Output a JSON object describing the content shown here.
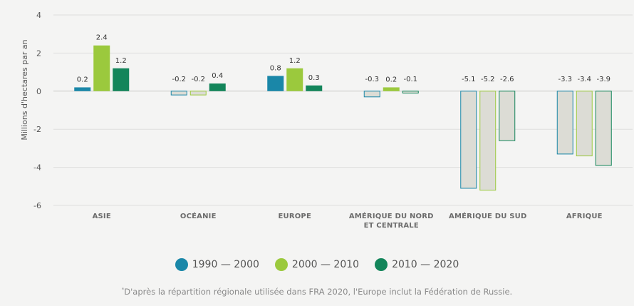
{
  "chart_data": {
    "type": "bar",
    "ylabel": "Millions d'hectares par an",
    "ylim": [
      -6,
      4
    ],
    "yticks": [
      4,
      2,
      0,
      -2,
      -4,
      -6
    ],
    "categories": [
      [
        "ASIE"
      ],
      [
        "OCÉANIE"
      ],
      [
        "EUROPE"
      ],
      [
        "AMÉRIQUE DU NORD",
        "ET CENTRALE"
      ],
      [
        "AMÉRIQUE DU SUD"
      ],
      [
        "AFRIQUE"
      ]
    ],
    "series": [
      {
        "name": "1990 — 2000",
        "color": "#1a87a8",
        "values": [
          0.2,
          -0.2,
          0.8,
          -0.3,
          -5.1,
          -3.3
        ]
      },
      {
        "name": "2000 — 2010",
        "color": "#9bc93d",
        "values": [
          2.4,
          -0.2,
          1.2,
          0.2,
          -5.2,
          -3.4
        ]
      },
      {
        "name": "2010 — 2020",
        "color": "#13855a",
        "values": [
          1.2,
          0.4,
          0.3,
          -0.1,
          -2.6,
          -3.9
        ]
      }
    ],
    "negative_fill": "#dcdcd5"
  },
  "legend": {
    "items": [
      {
        "label": "1990 — 2000",
        "color": "#1a87a8"
      },
      {
        "label": "2000 — 2010",
        "color": "#9bc93d"
      },
      {
        "label": "2010 — 2020",
        "color": "#13855a"
      }
    ]
  },
  "footnote": {
    "marker": "*",
    "text": "D'après la répartition régionale utilisée dans FRA 2020, l'Europe inclut la Fédération de Russie."
  }
}
